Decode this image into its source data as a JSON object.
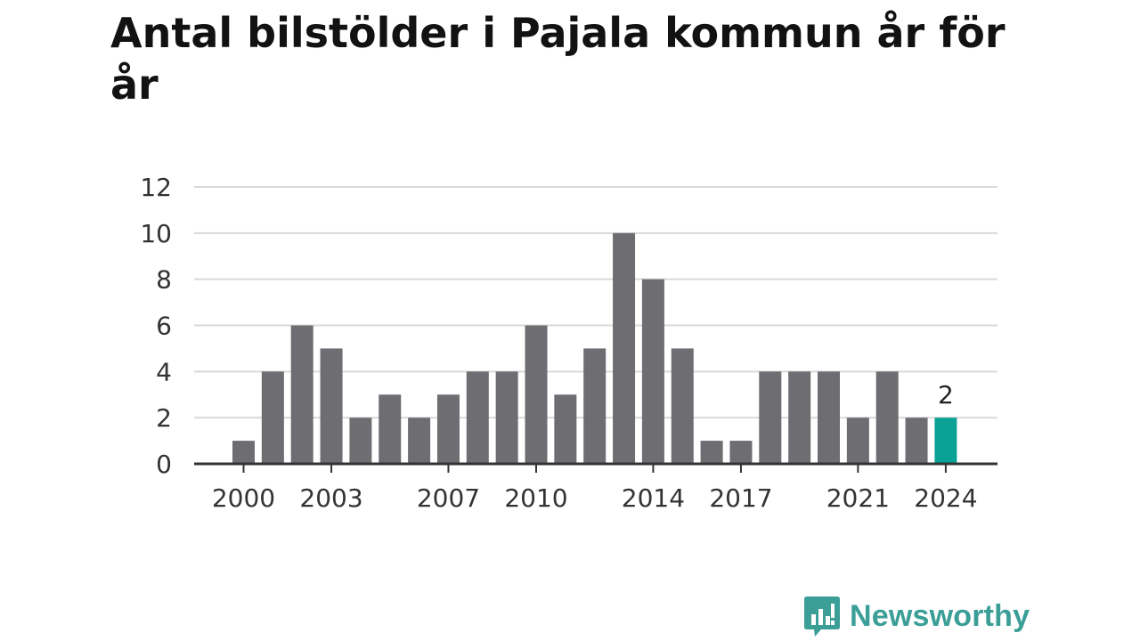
{
  "title": "Antal bilstölder i Pajala kommun år för år",
  "brand": {
    "name": "Newsworthy",
    "icon": "newsworthy-logo-icon",
    "color": "#3b9e97"
  },
  "chart_data": {
    "type": "bar",
    "title": "Antal bilstölder i Pajala kommun år för år",
    "xlabel": "",
    "ylabel": "",
    "categories": [
      2000,
      2001,
      2002,
      2003,
      2004,
      2005,
      2006,
      2007,
      2008,
      2009,
      2010,
      2011,
      2012,
      2013,
      2014,
      2015,
      2016,
      2017,
      2018,
      2019,
      2020,
      2021,
      2022,
      2023,
      2024
    ],
    "values": [
      1,
      4,
      6,
      5,
      2,
      3,
      2,
      3,
      4,
      4,
      6,
      3,
      5,
      10,
      8,
      5,
      1,
      1,
      4,
      4,
      4,
      2,
      4,
      2,
      2
    ],
    "x_tick_labels": [
      "2000",
      "2003",
      "2007",
      "2010",
      "2014",
      "2017",
      "2021",
      "2024"
    ],
    "ylim": [
      0,
      12
    ],
    "y_ticks": [
      0,
      2,
      4,
      6,
      8,
      10,
      12
    ],
    "grid": true,
    "bar_color": "#6e6d72",
    "highlight_color": "#0aa294",
    "highlight": {
      "category": 2024,
      "label": "2"
    }
  }
}
